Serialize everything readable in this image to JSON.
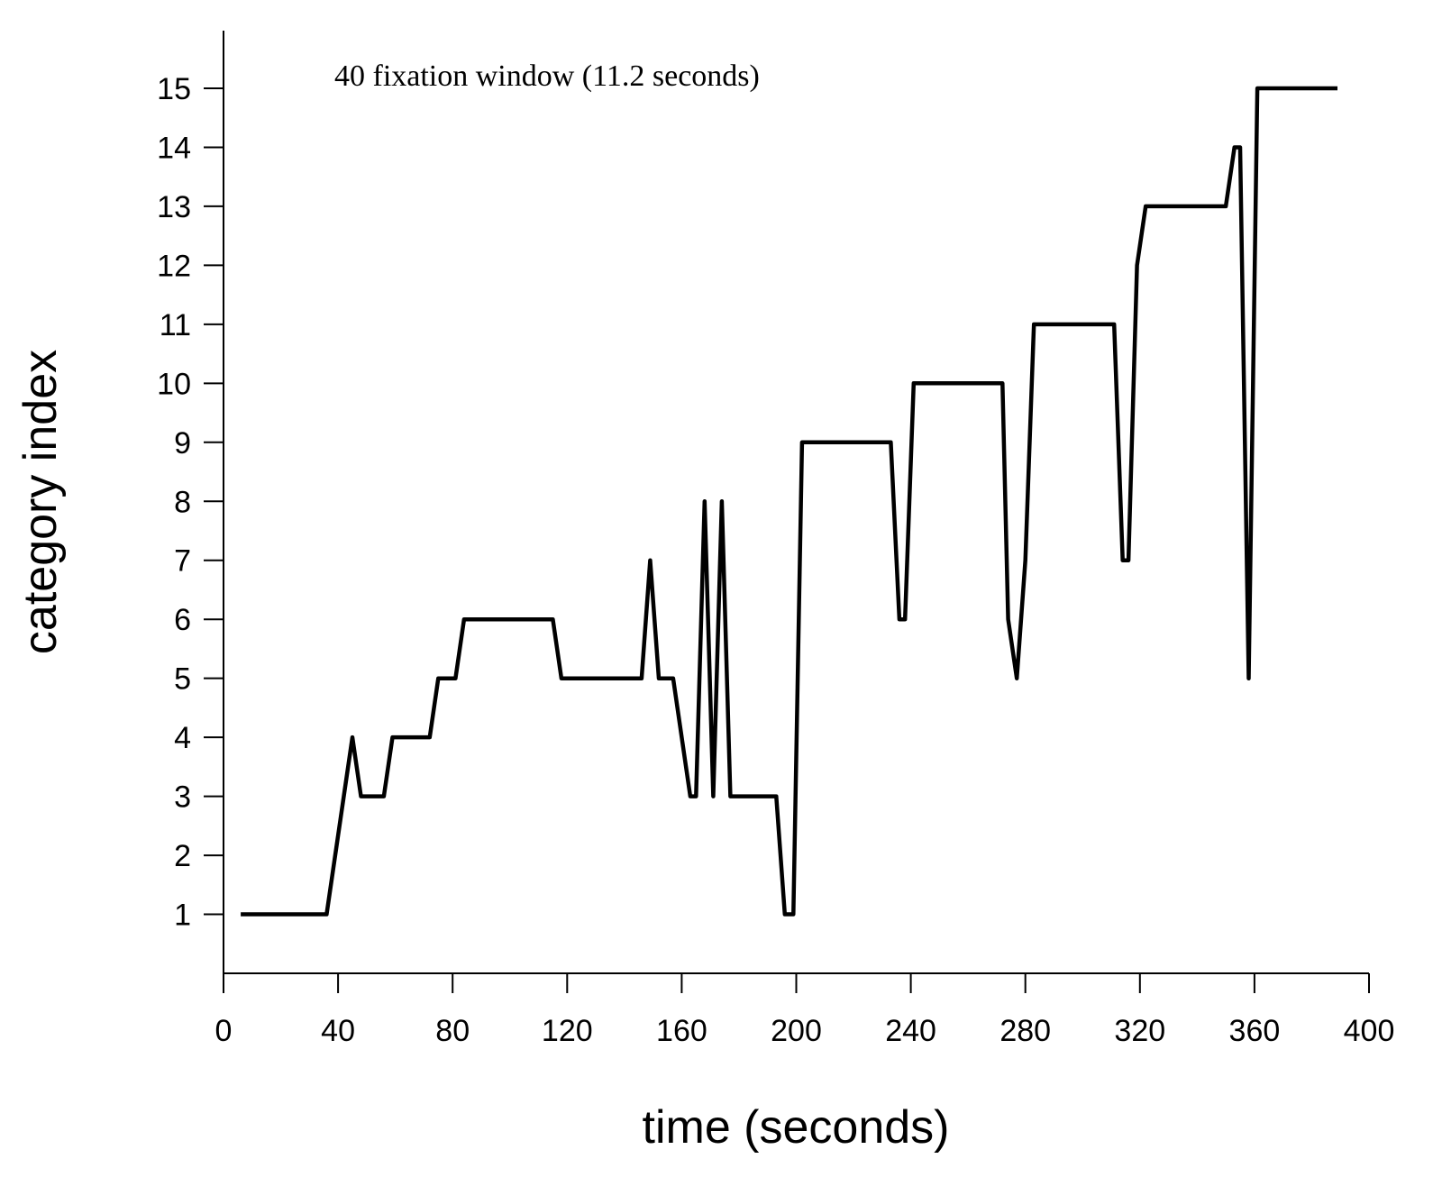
{
  "chart_data": {
    "type": "line",
    "annotation": "40 fixation window (11.2 seconds)",
    "xlabel": "time (seconds)",
    "ylabel": "category index",
    "xlim": [
      0,
      400
    ],
    "ylim": [
      0,
      16
    ],
    "x_ticks": [
      0,
      40,
      80,
      120,
      160,
      200,
      240,
      280,
      320,
      360,
      400
    ],
    "y_ticks": [
      1,
      2,
      3,
      4,
      5,
      6,
      7,
      8,
      9,
      10,
      11,
      12,
      13,
      14,
      15
    ],
    "grid": false,
    "line_color": "#000000",
    "series": [
      {
        "x": [
          6,
          36,
          45,
          48,
          56,
          59,
          72,
          75,
          81,
          84,
          115,
          118,
          146,
          149,
          152,
          157,
          163,
          165,
          168,
          171,
          174,
          177,
          193,
          196,
          199,
          202,
          233,
          236,
          238,
          241,
          272,
          274,
          277,
          280,
          283,
          311,
          314,
          316,
          319,
          322,
          350,
          353,
          355,
          358,
          361,
          389
        ],
        "y": [
          1,
          1,
          4,
          3,
          3,
          4,
          4,
          5,
          5,
          6,
          6,
          5,
          5,
          7,
          5,
          5,
          3,
          3,
          8,
          3,
          8,
          3,
          3,
          1,
          1,
          9,
          9,
          6,
          6,
          10,
          10,
          6,
          5,
          7,
          11,
          11,
          7,
          7,
          12,
          13,
          13,
          14,
          14,
          5,
          15,
          15
        ]
      }
    ]
  }
}
